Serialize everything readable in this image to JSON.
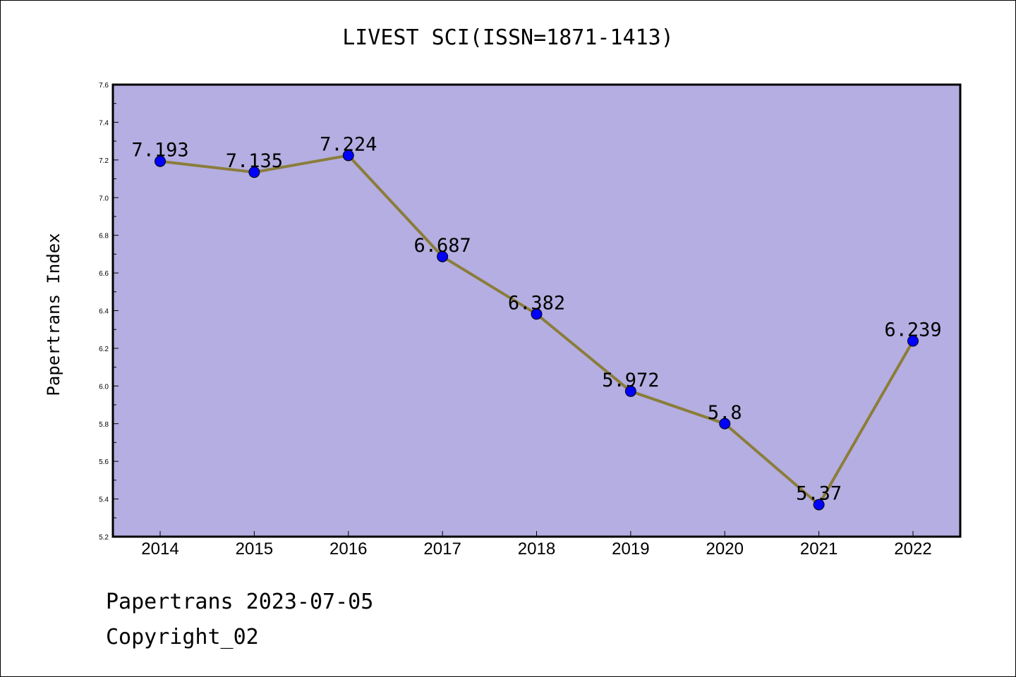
{
  "chart_data": {
    "type": "line",
    "title": "LIVEST SCI(ISSN=1871-1413)",
    "xlabel": "",
    "ylabel": "Papertrans Index",
    "categories": [
      "2014",
      "2015",
      "2016",
      "2017",
      "2018",
      "2019",
      "2020",
      "2021",
      "2022"
    ],
    "series": [
      {
        "values": [
          7.193,
          7.135,
          7.224,
          6.687,
          6.382,
          5.972,
          5.8,
          5.37,
          6.239
        ]
      }
    ],
    "data_labels": [
      "7.193",
      "7.135",
      "7.224",
      "6.687",
      "6.382",
      "5.972",
      "5.8",
      "5.37",
      "6.239"
    ],
    "ylim": [
      5.2,
      7.6
    ],
    "yticks": [
      "5.2",
      "5.4",
      "5.6",
      "5.8",
      "6.0",
      "6.2",
      "6.4",
      "6.6",
      "6.8",
      "7.0",
      "7.2",
      "7.4",
      "7.6"
    ],
    "grid": false,
    "legend": "none",
    "colors": {
      "plot_background": "#b4aee2",
      "line": "#8b7d3a",
      "marker": "#0000ff"
    }
  },
  "footer": {
    "line1": "Papertrans 2023-07-05",
    "line2": "Copyright_02"
  }
}
